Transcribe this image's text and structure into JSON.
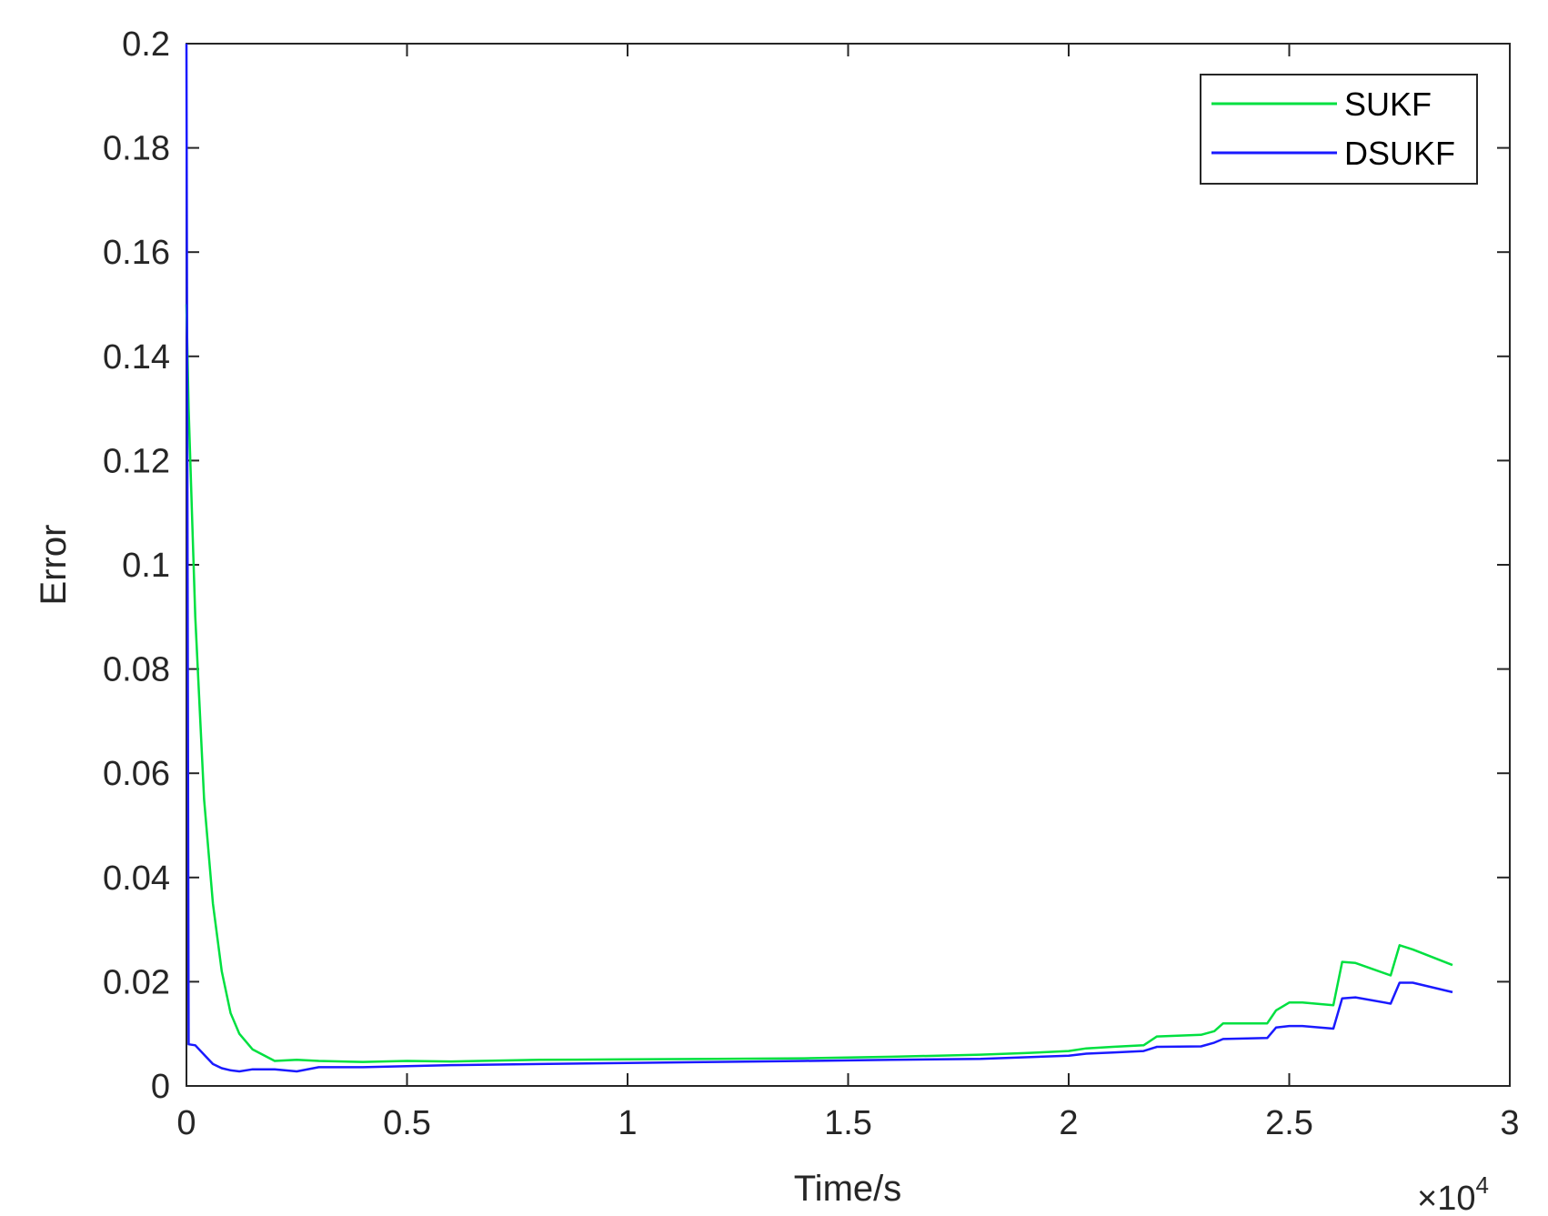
{
  "chart_data": {
    "type": "line",
    "title": "",
    "xlabel": "Time/s",
    "ylabel": "Error",
    "xlim": [
      0,
      3
    ],
    "ylim": [
      0,
      0.2
    ],
    "x_multiplier": {
      "base": "×10",
      "exponent": "4"
    },
    "xticks": [
      0,
      0.5,
      1,
      1.5,
      2,
      2.5,
      3
    ],
    "xtick_labels": [
      "0",
      "0.5",
      "1",
      "1.5",
      "2",
      "2.5",
      "3"
    ],
    "yticks": [
      0,
      0.02,
      0.04,
      0.06,
      0.08,
      0.1,
      0.12,
      0.14,
      0.16,
      0.18,
      0.2
    ],
    "ytick_labels": [
      "0",
      "0.02",
      "0.04",
      "0.06",
      "0.08",
      "0.1",
      "0.12",
      "0.14",
      "0.16",
      "0.18",
      "0.2"
    ],
    "grid": false,
    "legend_position": "top-right",
    "series": [
      {
        "name": "SUKF",
        "color": "#00e040",
        "x": [
          0,
          0.005,
          0.02,
          0.04,
          0.06,
          0.08,
          0.1,
          0.12,
          0.15,
          0.2,
          0.25,
          0.3,
          0.4,
          0.5,
          0.6,
          0.8,
          1.0,
          1.2,
          1.4,
          1.6,
          1.8,
          1.9,
          2.0,
          2.04,
          2.1,
          2.17,
          2.2,
          2.3,
          2.33,
          2.35,
          2.45,
          2.47,
          2.5,
          2.53,
          2.6,
          2.62,
          2.65,
          2.73,
          2.75,
          2.78,
          2.87
        ],
        "y": [
          0.15,
          0.13,
          0.09,
          0.055,
          0.035,
          0.022,
          0.014,
          0.01,
          0.007,
          0.0048,
          0.005,
          0.0048,
          0.0046,
          0.0048,
          0.0047,
          0.005,
          0.0051,
          0.0052,
          0.0053,
          0.0056,
          0.006,
          0.0063,
          0.0067,
          0.0072,
          0.0075,
          0.0078,
          0.0095,
          0.0098,
          0.0105,
          0.012,
          0.012,
          0.0145,
          0.016,
          0.016,
          0.0155,
          0.0238,
          0.0236,
          0.0212,
          0.027,
          0.0262,
          0.0232
        ]
      },
      {
        "name": "DSUKF",
        "color": "#1a1aff",
        "x": [
          0,
          0.005,
          0.02,
          0.04,
          0.06,
          0.08,
          0.1,
          0.12,
          0.15,
          0.2,
          0.25,
          0.3,
          0.4,
          0.5,
          0.6,
          0.8,
          1.0,
          1.2,
          1.4,
          1.6,
          1.8,
          1.9,
          2.0,
          2.04,
          2.1,
          2.17,
          2.2,
          2.3,
          2.33,
          2.35,
          2.45,
          2.47,
          2.5,
          2.53,
          2.6,
          2.62,
          2.65,
          2.73,
          2.75,
          2.78,
          2.87
        ],
        "y": [
          0.2,
          0.008,
          0.0078,
          0.006,
          0.0042,
          0.0034,
          0.003,
          0.0028,
          0.0032,
          0.0032,
          0.0028,
          0.0036,
          0.0036,
          0.0038,
          0.004,
          0.0042,
          0.0044,
          0.0046,
          0.0048,
          0.005,
          0.0052,
          0.0055,
          0.0058,
          0.0062,
          0.0064,
          0.0067,
          0.0075,
          0.0076,
          0.0083,
          0.009,
          0.0092,
          0.0112,
          0.0115,
          0.0115,
          0.011,
          0.0168,
          0.017,
          0.0158,
          0.0198,
          0.0198,
          0.018
        ]
      }
    ]
  }
}
